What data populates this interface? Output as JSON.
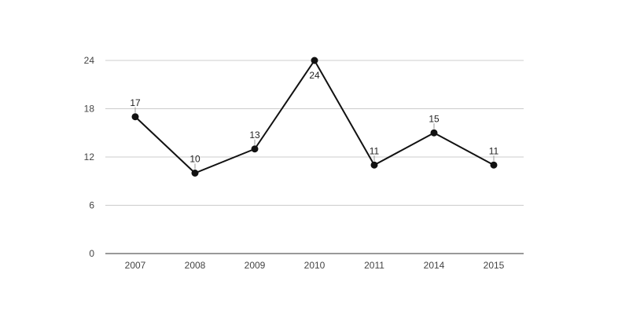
{
  "chart_data": {
    "type": "line",
    "categories": [
      "2007",
      "2008",
      "2009",
      "2010",
      "2011",
      "2014",
      "2015"
    ],
    "values": [
      17,
      10,
      13,
      24,
      11,
      15,
      11
    ],
    "y_ticks": [
      0,
      6,
      12,
      18,
      24
    ],
    "ylim": [
      0,
      24
    ],
    "grid": true,
    "legend": "none",
    "colors": {
      "line": "#111111",
      "marker": "#111111",
      "grid": "#cccccc",
      "axis": "#333333",
      "leader": "#999999"
    }
  }
}
